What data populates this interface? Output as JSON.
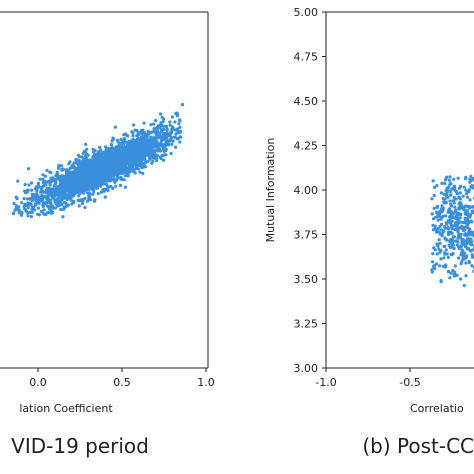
{
  "chart_data": [
    {
      "type": "scatter",
      "panel_caption": "VID-19 period",
      "xlabel": "lation Coefficient",
      "ylabel": "",
      "xlim": [
        -0.2,
        1.0
      ],
      "ylim": [
        3.0,
        5.0
      ],
      "x_ticks": [
        "0.0",
        "0.5",
        "1.0"
      ],
      "y_ticks": [],
      "grid": false,
      "point_color": "#3a8fdc",
      "cloud": {
        "shape": "elongated elliptical cloud, positive correlation",
        "center": [
          0.38,
          4.12
        ],
        "major_axis_slope": 0.45,
        "x_range": [
          -0.15,
          0.85
        ],
        "y_range": [
          3.85,
          4.45
        ],
        "point_count": 2600
      },
      "outliers": [
        [
          0.86,
          4.48
        ],
        [
          0.83,
          4.43
        ],
        [
          0.8,
          4.41
        ],
        [
          -0.13,
          3.96
        ],
        [
          -0.12,
          4.05
        ],
        [
          0.7,
          4.39
        ]
      ]
    },
    {
      "type": "scatter",
      "panel_caption": "(b) Post-CC",
      "xlabel": "Correlatio",
      "ylabel": "Mutual Information",
      "xlim": [
        -1.0,
        0.2
      ],
      "ylim": [
        3.0,
        5.0
      ],
      "x_ticks": [
        "-1.0",
        "-0.5"
      ],
      "y_ticks": [
        "3.00",
        "3.25",
        "3.50",
        "3.75",
        "4.00",
        "4.25",
        "4.50",
        "4.75",
        "5.00"
      ],
      "grid": false,
      "point_color": "#3a8fdc",
      "cloud": {
        "shape": "vertical band of scattered points, cropped at right edge",
        "center": [
          -0.2,
          3.8
        ],
        "x_range": [
          -0.37,
          0.02
        ],
        "y_range": [
          3.46,
          4.08
        ],
        "point_count": 650
      }
    }
  ]
}
